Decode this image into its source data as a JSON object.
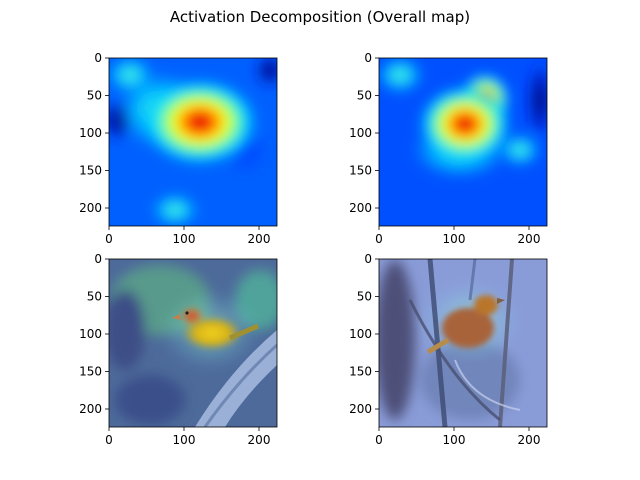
{
  "figure": {
    "title": "Activation Decomposition (Overall map)"
  },
  "colors": {
    "spine": "#000000",
    "tick": "#000000"
  },
  "chart_data": [
    {
      "type": "heatmap",
      "panel": "top-left",
      "content": "activation heatmap (jet colormap)",
      "xticks": [
        0,
        100,
        200
      ],
      "yticks": [
        0,
        50,
        100,
        150,
        200
      ],
      "xlim": [
        0,
        224
      ],
      "ylim": [
        224,
        0
      ],
      "peak": [
        110,
        80
      ]
    },
    {
      "type": "heatmap",
      "panel": "top-right",
      "content": "activation heatmap (jet colormap)",
      "xticks": [
        0,
        100,
        200
      ],
      "yticks": [
        0,
        50,
        100,
        150,
        200
      ],
      "xlim": [
        0,
        224
      ],
      "ylim": [
        224,
        0
      ],
      "peak": [
        115,
        80
      ]
    },
    {
      "type": "heatmap",
      "panel": "bottom-left",
      "content": "heatmap overlaid on bird photo",
      "xticks": [
        0,
        100,
        200
      ],
      "yticks": [
        0,
        50,
        100,
        150,
        200
      ],
      "xlim": [
        0,
        224
      ],
      "ylim": [
        224,
        0
      ]
    },
    {
      "type": "heatmap",
      "panel": "bottom-right",
      "content": "heatmap overlaid on bird photo",
      "xticks": [
        0,
        100,
        200
      ],
      "yticks": [
        0,
        50,
        100,
        150,
        200
      ],
      "xlim": [
        0,
        224
      ],
      "ylim": [
        224,
        0
      ]
    }
  ]
}
